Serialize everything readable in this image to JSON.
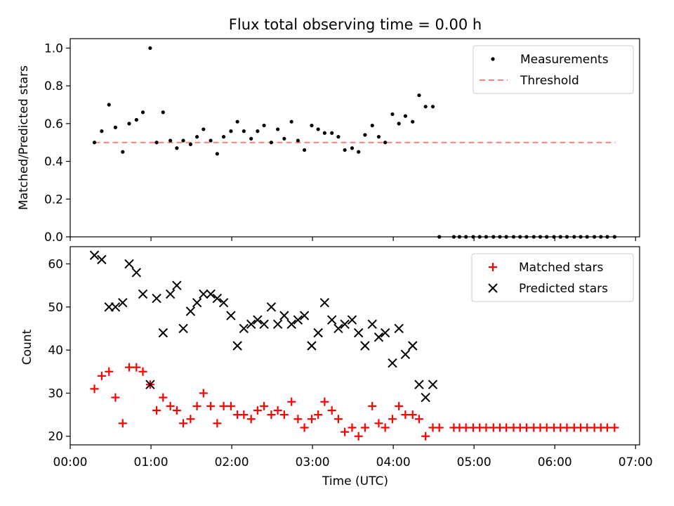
{
  "chart_data": [
    {
      "type": "scatter",
      "title": "Flux total observing time = 0.00 h",
      "xlabel": "",
      "ylabel": "Matched/Predicted stars",
      "ylim": [
        0,
        1.05
      ],
      "yticks": [
        "0.0",
        "0.2",
        "0.4",
        "0.6",
        "0.8",
        "1.0"
      ],
      "legend_position": "top-right",
      "threshold": 0.5,
      "threshold_x": [
        0.3,
        6.75
      ],
      "series": [
        {
          "name": "Measurements",
          "color": "#000000",
          "marker": "dot",
          "x": [
            0.3,
            0.39,
            0.48,
            0.56,
            0.65,
            0.73,
            0.82,
            0.9,
            0.99,
            1.07,
            1.15,
            1.24,
            1.32,
            1.4,
            1.49,
            1.57,
            1.65,
            1.74,
            1.82,
            1.9,
            1.99,
            2.07,
            2.15,
            2.24,
            2.32,
            2.4,
            2.49,
            2.57,
            2.65,
            2.74,
            2.82,
            2.9,
            2.99,
            3.07,
            3.15,
            3.24,
            3.32,
            3.4,
            3.49,
            3.57,
            3.65,
            3.74,
            3.82,
            3.9,
            3.99,
            4.07,
            4.15,
            4.24,
            4.32,
            4.4,
            4.49,
            4.57,
            4.75,
            4.82,
            4.9,
            4.99,
            5.07,
            5.15,
            5.24,
            5.32,
            5.4,
            5.49,
            5.57,
            5.65,
            5.74,
            5.82,
            5.9,
            5.99,
            6.07,
            6.15,
            6.24,
            6.32,
            6.4,
            6.49,
            6.57,
            6.65,
            6.74
          ],
          "y": [
            0.5,
            0.56,
            0.7,
            0.58,
            0.45,
            0.6,
            0.62,
            0.66,
            1.0,
            0.5,
            0.66,
            0.51,
            0.47,
            0.51,
            0.49,
            0.53,
            0.57,
            0.51,
            0.44,
            0.53,
            0.56,
            0.61,
            0.56,
            0.52,
            0.56,
            0.59,
            0.5,
            0.57,
            0.52,
            0.61,
            0.51,
            0.46,
            0.59,
            0.57,
            0.55,
            0.55,
            0.53,
            0.46,
            0.47,
            0.45,
            0.54,
            0.59,
            0.53,
            0.5,
            0.65,
            0.6,
            0.64,
            0.61,
            0.75,
            0.69,
            0.69,
            0.0,
            0.0,
            0.0,
            0.0,
            0.0,
            0.0,
            0.0,
            0.0,
            0.0,
            0.0,
            0.0,
            0.0,
            0.0,
            0.0,
            0.0,
            0.0,
            0.0,
            0.0,
            0.0,
            0.0,
            0.0,
            0.0,
            0.0,
            0.0,
            0.0,
            0.0
          ]
        },
        {
          "name": "Threshold",
          "color": "#ff7f7f",
          "style": "dashed"
        }
      ]
    },
    {
      "type": "scatter",
      "title": "",
      "xlabel": "Time (UTC)",
      "ylabel": "Count",
      "ylim": [
        18,
        64
      ],
      "yticks": [
        "20",
        "30",
        "40",
        "50",
        "60"
      ],
      "xticks": [
        "00:00",
        "01:00",
        "02:00",
        "03:00",
        "04:00",
        "05:00",
        "06:00",
        "07:00"
      ],
      "xlim": [
        0,
        7.05
      ],
      "legend_position": "top-right",
      "series": [
        {
          "name": "Matched stars",
          "color": "#ff0000",
          "marker": "plus",
          "x": [
            0.3,
            0.39,
            0.48,
            0.56,
            0.65,
            0.73,
            0.82,
            0.9,
            0.99,
            1.07,
            1.15,
            1.24,
            1.32,
            1.4,
            1.49,
            1.57,
            1.65,
            1.74,
            1.82,
            1.9,
            1.99,
            2.07,
            2.15,
            2.24,
            2.32,
            2.4,
            2.49,
            2.57,
            2.65,
            2.74,
            2.82,
            2.9,
            2.99,
            3.07,
            3.15,
            3.24,
            3.32,
            3.4,
            3.49,
            3.57,
            3.65,
            3.74,
            3.82,
            3.9,
            3.99,
            4.07,
            4.15,
            4.24,
            4.32,
            4.4,
            4.49,
            4.57,
            4.75,
            4.82,
            4.9,
            4.99,
            5.07,
            5.15,
            5.24,
            5.32,
            5.4,
            5.49,
            5.57,
            5.65,
            5.74,
            5.82,
            5.9,
            5.99,
            6.07,
            6.15,
            6.24,
            6.32,
            6.4,
            6.49,
            6.57,
            6.65,
            6.74
          ],
          "y": [
            31,
            34,
            35,
            29,
            23,
            36,
            36,
            35,
            32,
            26,
            29,
            27,
            26,
            23,
            24,
            27,
            30,
            27,
            23,
            27,
            27,
            25,
            25,
            24,
            26,
            27,
            25,
            26,
            25,
            28,
            24,
            22,
            24,
            25,
            28,
            26,
            24,
            21,
            22,
            20,
            22,
            27,
            23,
            22,
            24,
            27,
            25,
            25,
            24,
            20,
            22,
            22,
            22,
            22,
            22,
            22,
            22,
            22,
            22,
            22,
            22,
            22,
            22,
            22,
            22,
            22,
            22,
            22,
            22,
            22,
            22,
            22,
            22,
            22,
            22,
            22,
            22
          ]
        },
        {
          "name": "Predicted stars",
          "color": "#000000",
          "marker": "x",
          "x": [
            0.3,
            0.39,
            0.48,
            0.56,
            0.65,
            0.73,
            0.82,
            0.9,
            0.99,
            1.07,
            1.15,
            1.24,
            1.32,
            1.4,
            1.49,
            1.57,
            1.65,
            1.74,
            1.82,
            1.9,
            1.99,
            2.07,
            2.15,
            2.24,
            2.32,
            2.4,
            2.49,
            2.57,
            2.65,
            2.74,
            2.82,
            2.9,
            2.99,
            3.07,
            3.15,
            3.24,
            3.32,
            3.4,
            3.49,
            3.57,
            3.65,
            3.74,
            3.82,
            3.9,
            3.99,
            4.07,
            4.15,
            4.24,
            4.32,
            4.4,
            4.49
          ],
          "y": [
            62,
            61,
            50,
            50,
            51,
            60,
            58,
            53,
            32,
            52,
            44,
            53,
            55,
            45,
            49,
            51,
            53,
            53,
            52,
            51,
            48,
            41,
            45,
            46,
            47,
            46,
            50,
            46,
            48,
            46,
            47,
            48,
            41,
            44,
            51,
            47,
            45,
            46,
            47,
            44,
            41,
            46,
            43,
            44,
            37,
            45,
            39,
            41,
            32,
            29,
            32
          ]
        }
      ]
    }
  ]
}
